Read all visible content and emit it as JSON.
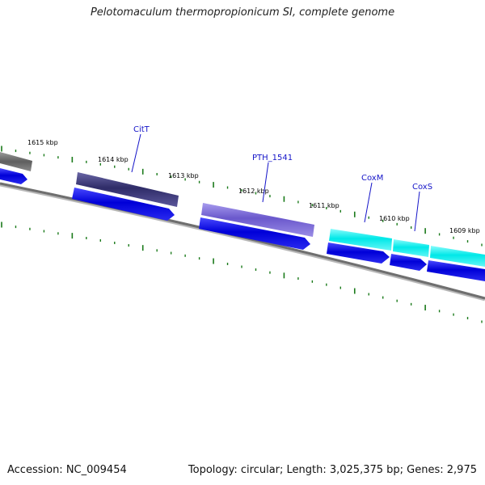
{
  "title": "Pelotomaculum thermopropionicum SI, complete genome",
  "accession": "Accession: NC_009454",
  "summary": "Topology: circular; Length: 3,025,375 bp; Genes: 2,975",
  "ticks": [
    {
      "label": "1615 kbp"
    },
    {
      "label": "1614 kbp"
    },
    {
      "label": "1613 kbp"
    },
    {
      "label": "1612 kbp"
    },
    {
      "label": "1611 kbp"
    },
    {
      "label": "1610 kbp"
    },
    {
      "label": "1609 kbp"
    }
  ],
  "gene_labels": [
    {
      "label": "CitT"
    },
    {
      "label": "PTH_1541"
    },
    {
      "label": "CoxM"
    },
    {
      "label": "CoxS"
    }
  ],
  "colors": {
    "backbone": "#777777",
    "cds": "#0000e0",
    "tick": "#1a7a1a",
    "label": "#1414c8",
    "gray_block": "#6a6a6a",
    "dark_purple": "#3c3a78",
    "light_purple": "#7a6ad6",
    "cyan": "#18f0f0"
  }
}
